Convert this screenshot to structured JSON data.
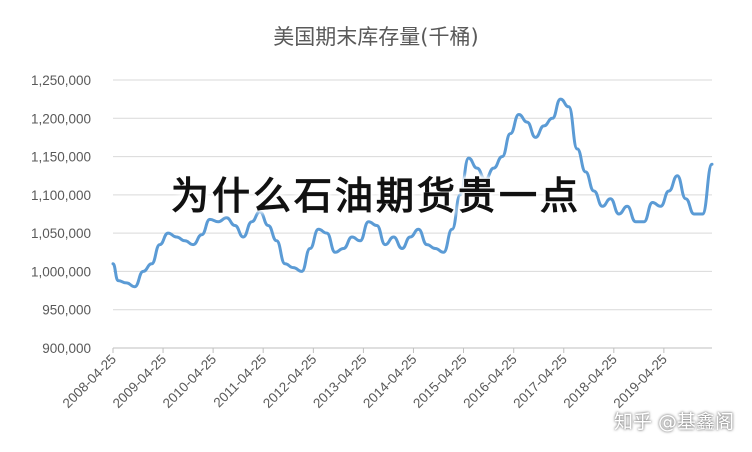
{
  "chart_data": {
    "type": "line",
    "title": "美国期末库存量(千桶)",
    "xlabel": "",
    "ylabel": "",
    "ylim": [
      900000,
      1250000
    ],
    "yticks": [
      "900,000",
      "950,000",
      "1,000,000",
      "1,050,000",
      "1,100,000",
      "1,150,000",
      "1,200,000",
      "1,250,000"
    ],
    "ytick_values": [
      900000,
      950000,
      1000000,
      1050000,
      1100000,
      1150000,
      1200000,
      1250000
    ],
    "xticks": [
      "2008-04-25",
      "2009-04-25",
      "2010-04-25",
      "2011-04-25",
      "2012-04-25",
      "2013-04-25",
      "2014-04-25",
      "2015-04-25",
      "2016-04-25",
      "2017-04-25",
      "2018-04-25",
      "2019-04-25"
    ],
    "xlim": [
      "2008-04-25",
      "2020-04-10"
    ],
    "grid": "horizontal",
    "line_color": "#5B9BD5",
    "series": [
      {
        "x": [
          "2008-04-25",
          "2008-06-01",
          "2008-08-01",
          "2008-10-01",
          "2008-12-01",
          "2009-02-01",
          "2009-04-01",
          "2009-06-01",
          "2009-08-01",
          "2009-10-01",
          "2009-12-01",
          "2010-02-01",
          "2010-04-01",
          "2010-06-01",
          "2010-08-01",
          "2010-10-01",
          "2010-12-01",
          "2011-02-01",
          "2011-04-01",
          "2011-06-01",
          "2011-08-01",
          "2011-10-01",
          "2011-12-01",
          "2012-02-01",
          "2012-04-01",
          "2012-06-01",
          "2012-08-01",
          "2012-10-01",
          "2012-12-01",
          "2013-02-01",
          "2013-04-01",
          "2013-06-01",
          "2013-08-01",
          "2013-10-01",
          "2013-12-01",
          "2014-02-01",
          "2014-04-01",
          "2014-06-01",
          "2014-08-01",
          "2014-10-01",
          "2014-12-01",
          "2015-02-01",
          "2015-04-01",
          "2015-06-01",
          "2015-08-01",
          "2015-10-01",
          "2015-12-01",
          "2016-02-01",
          "2016-04-01",
          "2016-06-01",
          "2016-08-01",
          "2016-10-01",
          "2016-12-01",
          "2017-02-01",
          "2017-04-01",
          "2017-06-01",
          "2017-08-01",
          "2017-10-01",
          "2017-12-01",
          "2018-02-01",
          "2018-04-01",
          "2018-06-01",
          "2018-08-01",
          "2018-10-01",
          "2018-12-01",
          "2019-02-01",
          "2019-04-01",
          "2019-06-01",
          "2019-08-01",
          "2019-10-01",
          "2019-12-01",
          "2020-02-01",
          "2020-04-10"
        ],
        "values": [
          1010000,
          988000,
          985000,
          980000,
          1000000,
          1010000,
          1035000,
          1050000,
          1045000,
          1040000,
          1035000,
          1048000,
          1068000,
          1065000,
          1070000,
          1060000,
          1045000,
          1065000,
          1078000,
          1060000,
          1040000,
          1010000,
          1005000,
          1000000,
          1030000,
          1055000,
          1050000,
          1025000,
          1030000,
          1045000,
          1040000,
          1065000,
          1060000,
          1035000,
          1045000,
          1030000,
          1045000,
          1055000,
          1035000,
          1030000,
          1025000,
          1055000,
          1100000,
          1148000,
          1135000,
          1120000,
          1135000,
          1150000,
          1180000,
          1205000,
          1195000,
          1175000,
          1190000,
          1200000,
          1225000,
          1215000,
          1160000,
          1130000,
          1105000,
          1085000,
          1095000,
          1075000,
          1085000,
          1065000,
          1065000,
          1090000,
          1085000,
          1105000,
          1125000,
          1095000,
          1075000,
          1075000,
          1140000
        ]
      }
    ]
  },
  "overlay_text": "为什么石油期货贵一点",
  "watermark": "知乎 @基鑫阁"
}
